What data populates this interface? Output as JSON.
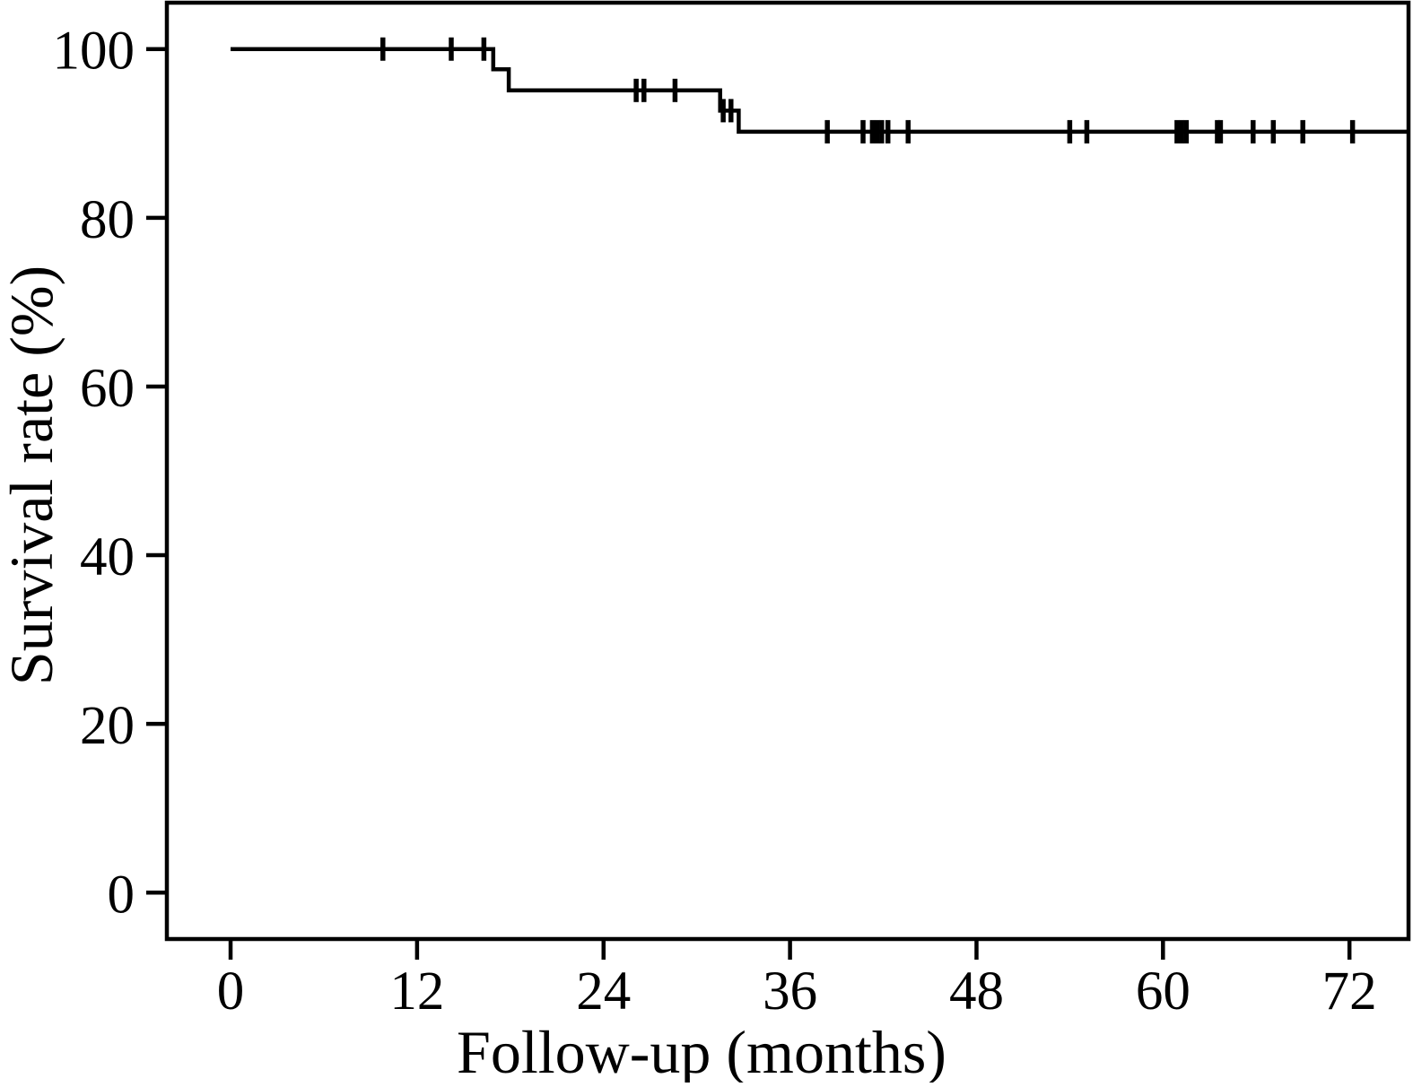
{
  "figure": {
    "background": "#ffffff",
    "foreground": "#000000"
  },
  "chart_data": {
    "type": "line",
    "subtype": "kaplan-meier-step-curve",
    "title": "",
    "xlabel": "Follow-up (months)",
    "ylabel": "Survival rate (%)",
    "xlim": [
      -4.1,
      75.8
    ],
    "ylim": [
      -5.5,
      105.5
    ],
    "x_ticks": [
      0,
      12,
      24,
      36,
      48,
      60,
      72
    ],
    "y_ticks": [
      0,
      20,
      40,
      60,
      80,
      100
    ],
    "grid": false,
    "legend_position": "none",
    "line_color": "#000000",
    "series": [
      {
        "name": "Survival rate",
        "steps": [
          {
            "t": 0,
            "s": 100
          },
          {
            "t": 16.9,
            "s": 97.6
          },
          {
            "t": 17.9,
            "s": 95.1
          },
          {
            "t": 31.5,
            "s": 92.7
          },
          {
            "t": 32.7,
            "s": 90.2
          }
        ],
        "curve_end_t": 75.8,
        "censor_marks": [
          {
            "t": 9.8,
            "s": 100
          },
          {
            "t": 14.2,
            "s": 100
          },
          {
            "t": 16.3,
            "s": 100
          },
          {
            "t": 26.1,
            "s": 95.1
          },
          {
            "t": 26.6,
            "s": 95.1
          },
          {
            "t": 28.6,
            "s": 95.1
          },
          {
            "t": 31.7,
            "s": 92.7
          },
          {
            "t": 32.2,
            "s": 92.7
          },
          {
            "t": 38.4,
            "s": 90.2
          },
          {
            "t": 40.7,
            "s": 90.2
          },
          {
            "t": 41.3,
            "s": 90.2
          },
          {
            "t": 41.6,
            "s": 90.2
          },
          {
            "t": 41.9,
            "s": 90.2
          },
          {
            "t": 42.3,
            "s": 90.2
          },
          {
            "t": 43.6,
            "s": 90.2
          },
          {
            "t": 54.0,
            "s": 90.2
          },
          {
            "t": 55.1,
            "s": 90.2
          },
          {
            "t": 60.9,
            "s": 90.2
          },
          {
            "t": 61.2,
            "s": 90.2
          },
          {
            "t": 61.5,
            "s": 90.2
          },
          {
            "t": 63.5,
            "s": 90.2
          },
          {
            "t": 63.7,
            "s": 90.2
          },
          {
            "t": 65.8,
            "s": 90.2
          },
          {
            "t": 67.1,
            "s": 90.2
          },
          {
            "t": 69.0,
            "s": 90.2
          },
          {
            "t": 72.2,
            "s": 90.2
          }
        ]
      }
    ]
  }
}
